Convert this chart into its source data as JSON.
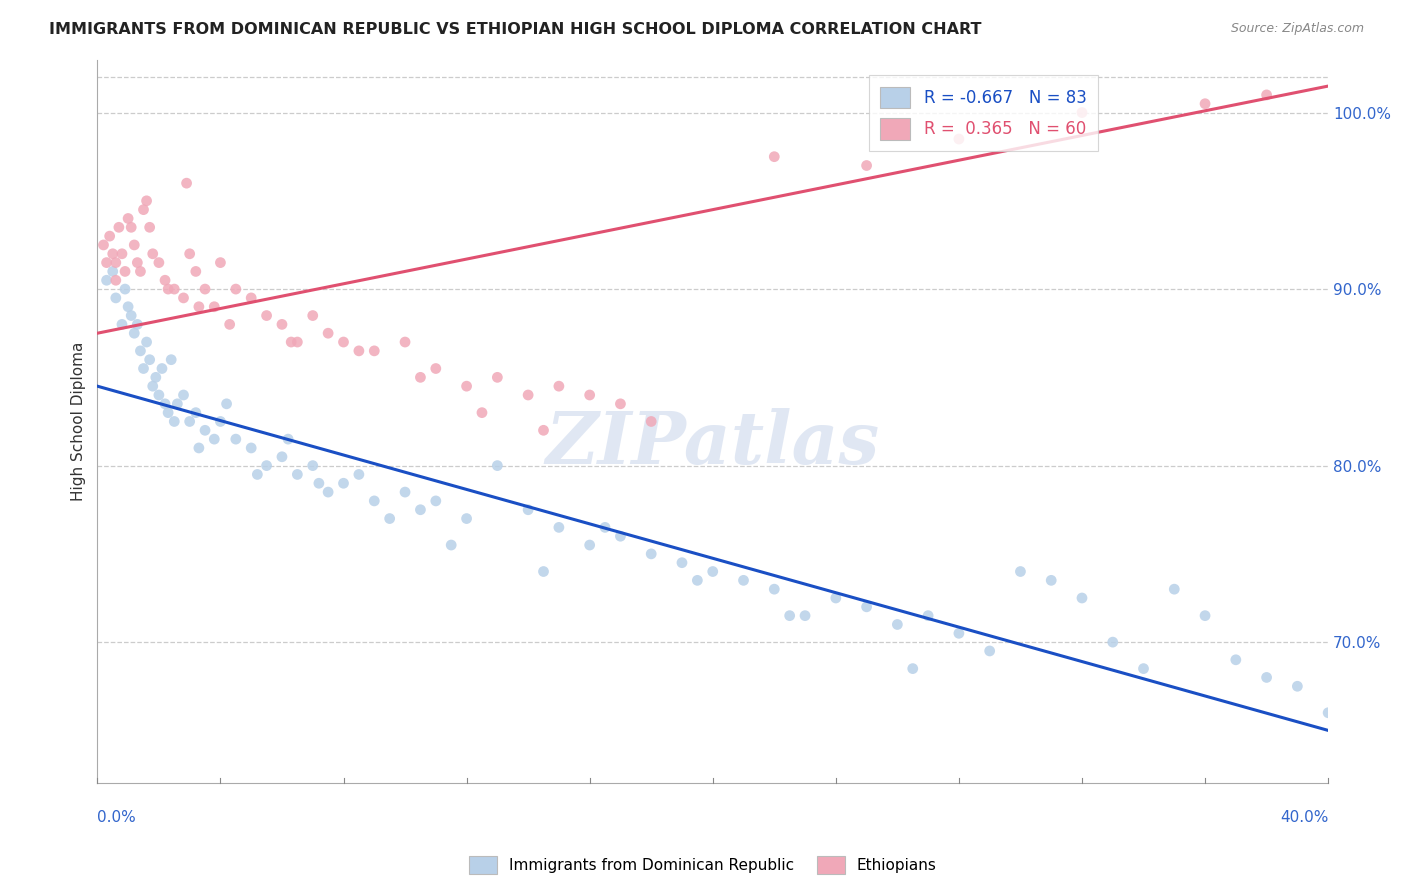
{
  "title": "IMMIGRANTS FROM DOMINICAN REPUBLIC VS ETHIOPIAN HIGH SCHOOL DIPLOMA CORRELATION CHART",
  "source": "Source: ZipAtlas.com",
  "ylabel": "High School Diploma",
  "legend_blue": {
    "R": -0.667,
    "N": 83,
    "label": "Immigrants from Dominican Republic"
  },
  "legend_pink": {
    "R": 0.365,
    "N": 60,
    "label": "Ethiopians"
  },
  "blue_color": "#b8d0e8",
  "pink_color": "#f0a8b8",
  "blue_line_color": "#1a4fc4",
  "pink_line_color": "#e05070",
  "watermark": "ZIPatlas",
  "x_min": 0.0,
  "x_max": 40.0,
  "y_min": 62.0,
  "y_max": 103.0,
  "ytick_vals": [
    70.0,
    80.0,
    90.0,
    100.0
  ],
  "blue_line_y0": 84.5,
  "blue_line_y1": 65.0,
  "pink_line_y0": 87.5,
  "pink_line_y1": 101.5,
  "blue_x": [
    0.3,
    0.5,
    0.6,
    0.8,
    0.9,
    1.0,
    1.1,
    1.2,
    1.3,
    1.4,
    1.5,
    1.6,
    1.7,
    1.8,
    1.9,
    2.0,
    2.1,
    2.2,
    2.3,
    2.5,
    2.6,
    2.8,
    3.0,
    3.2,
    3.5,
    3.8,
    4.0,
    4.5,
    5.0,
    5.5,
    6.0,
    6.5,
    7.0,
    7.5,
    8.0,
    8.5,
    9.0,
    10.0,
    10.5,
    11.0,
    12.0,
    13.0,
    14.0,
    15.0,
    16.0,
    17.0,
    18.0,
    19.0,
    20.0,
    21.0,
    22.0,
    23.0,
    24.0,
    25.0,
    26.0,
    27.0,
    28.0,
    29.0,
    30.0,
    31.0,
    32.0,
    33.0,
    34.0,
    35.0,
    36.0,
    37.0,
    38.0,
    39.0,
    40.0,
    2.4,
    3.3,
    4.2,
    5.2,
    6.2,
    7.2,
    9.5,
    11.5,
    14.5,
    16.5,
    19.5,
    22.5,
    26.5
  ],
  "blue_y": [
    90.5,
    91.0,
    89.5,
    88.0,
    90.0,
    89.0,
    88.5,
    87.5,
    88.0,
    86.5,
    85.5,
    87.0,
    86.0,
    84.5,
    85.0,
    84.0,
    85.5,
    83.5,
    83.0,
    82.5,
    83.5,
    84.0,
    82.5,
    83.0,
    82.0,
    81.5,
    82.5,
    81.5,
    81.0,
    80.0,
    80.5,
    79.5,
    80.0,
    78.5,
    79.0,
    79.5,
    78.0,
    78.5,
    77.5,
    78.0,
    77.0,
    80.0,
    77.5,
    76.5,
    75.5,
    76.0,
    75.0,
    74.5,
    74.0,
    73.5,
    73.0,
    71.5,
    72.5,
    72.0,
    71.0,
    71.5,
    70.5,
    69.5,
    74.0,
    73.5,
    72.5,
    70.0,
    68.5,
    73.0,
    71.5,
    69.0,
    68.0,
    67.5,
    66.0,
    86.0,
    81.0,
    83.5,
    79.5,
    81.5,
    79.0,
    77.0,
    75.5,
    74.0,
    76.5,
    73.5,
    71.5,
    68.5
  ],
  "pink_x": [
    0.2,
    0.3,
    0.4,
    0.5,
    0.6,
    0.7,
    0.8,
    0.9,
    1.0,
    1.1,
    1.2,
    1.3,
    1.5,
    1.7,
    1.8,
    2.0,
    2.2,
    2.5,
    2.8,
    3.0,
    3.2,
    3.5,
    3.8,
    4.0,
    4.5,
    5.0,
    5.5,
    6.0,
    6.5,
    7.0,
    7.5,
    8.0,
    9.0,
    10.0,
    11.0,
    12.0,
    13.0,
    14.0,
    15.0,
    16.0,
    17.0,
    18.0,
    0.6,
    1.4,
    2.3,
    3.3,
    4.3,
    6.3,
    8.5,
    10.5,
    12.5,
    14.5,
    22.0,
    25.0,
    28.0,
    32.0,
    36.0,
    38.0,
    1.6,
    2.9
  ],
  "pink_y": [
    92.5,
    91.5,
    93.0,
    92.0,
    91.5,
    93.5,
    92.0,
    91.0,
    94.0,
    93.5,
    92.5,
    91.5,
    94.5,
    93.5,
    92.0,
    91.5,
    90.5,
    90.0,
    89.5,
    92.0,
    91.0,
    90.0,
    89.0,
    91.5,
    90.0,
    89.5,
    88.5,
    88.0,
    87.0,
    88.5,
    87.5,
    87.0,
    86.5,
    87.0,
    85.5,
    84.5,
    85.0,
    84.0,
    84.5,
    84.0,
    83.5,
    82.5,
    90.5,
    91.0,
    90.0,
    89.0,
    88.0,
    87.0,
    86.5,
    85.0,
    83.0,
    82.0,
    97.5,
    97.0,
    98.5,
    100.0,
    100.5,
    101.0,
    95.0,
    96.0
  ]
}
